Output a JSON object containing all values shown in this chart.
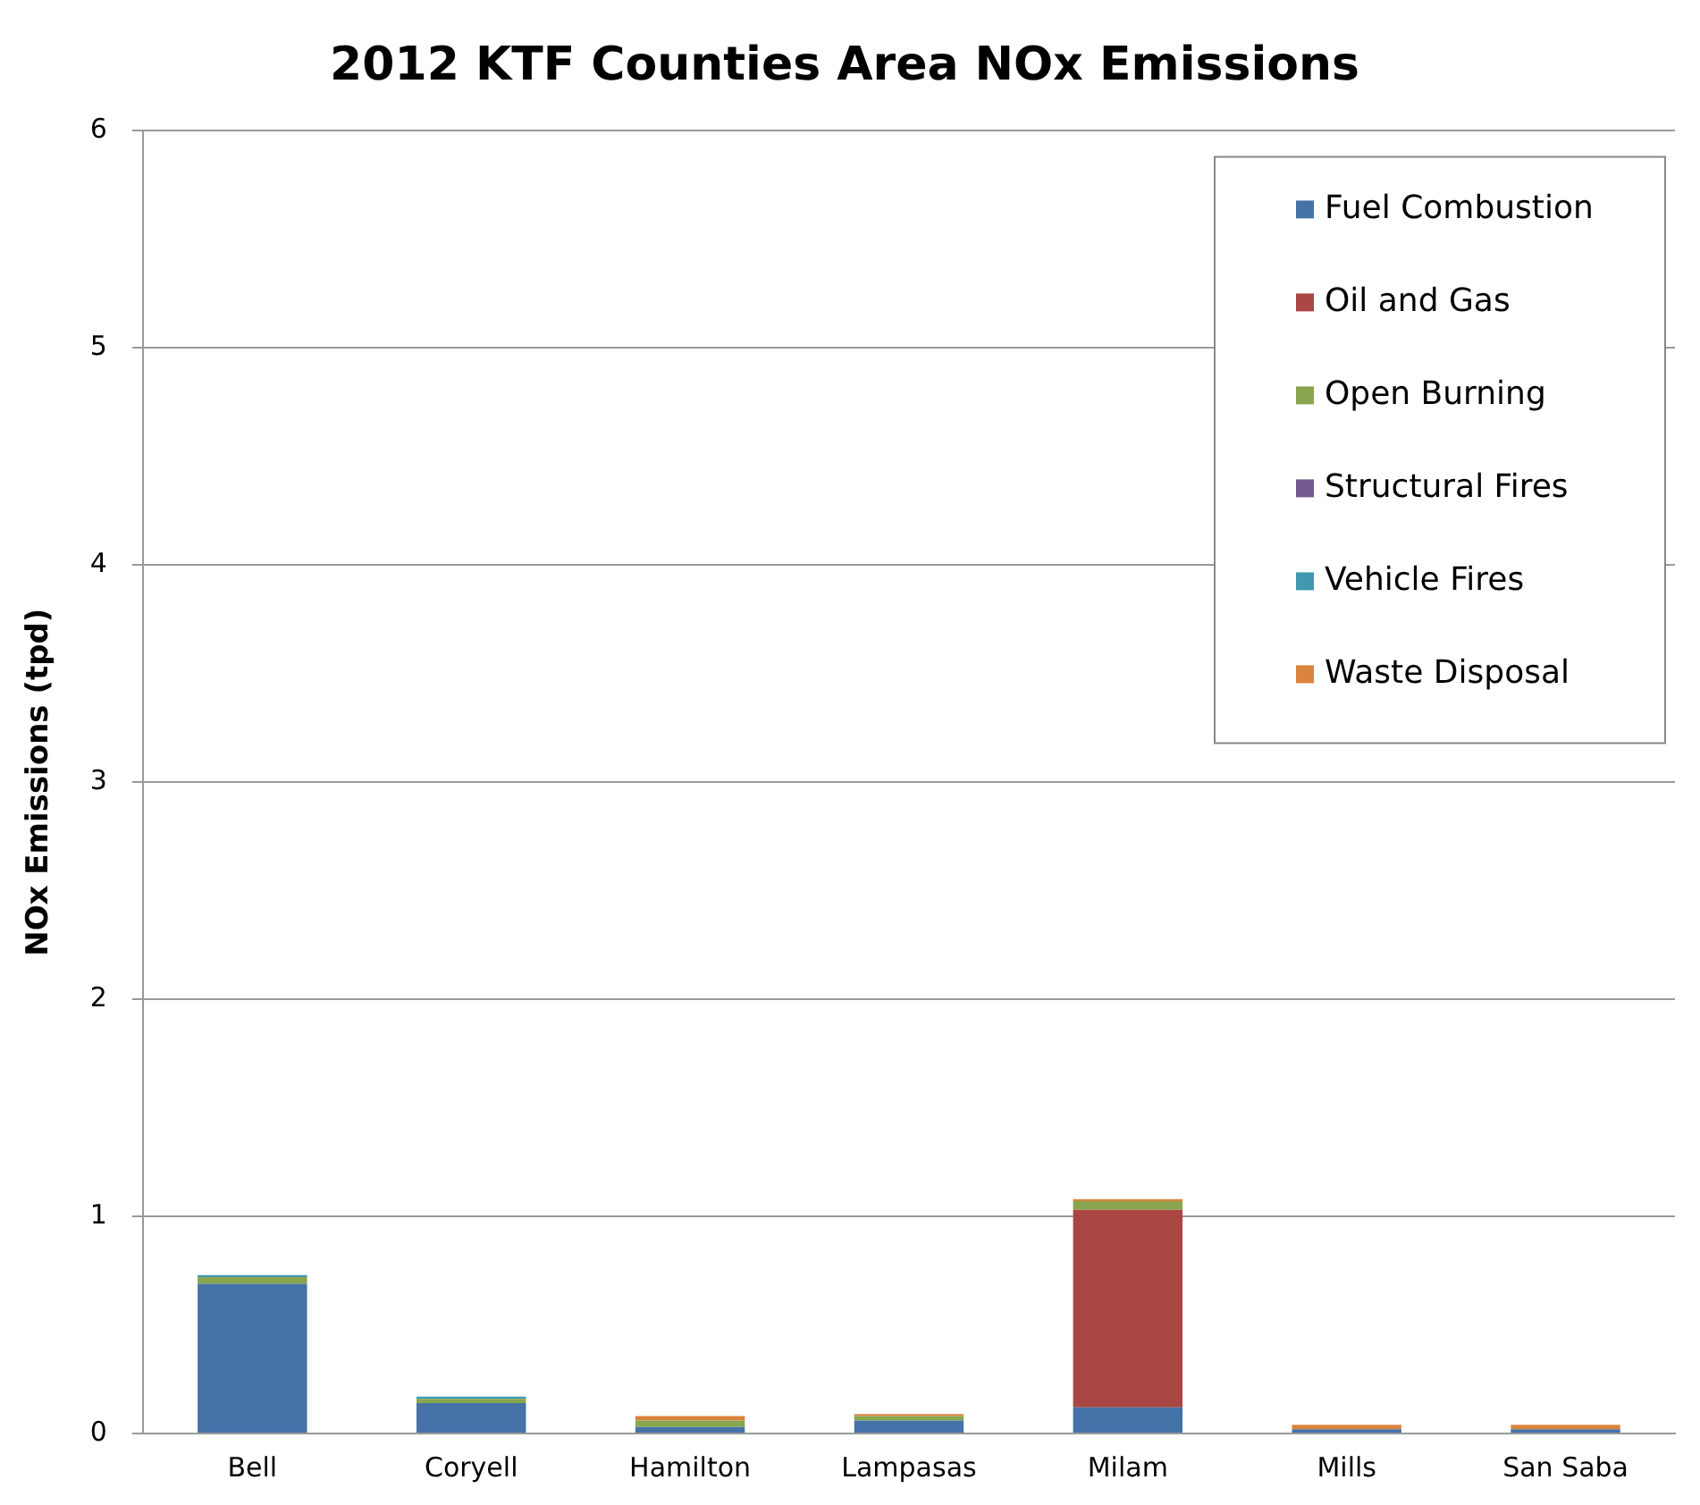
{
  "chart_data": {
    "type": "bar",
    "title": "2012 KTF Counties Area NOx Emissions",
    "ylabel": "NOx Emissions (tpd)",
    "categories": [
      "Bell",
      "Coryell",
      "Hamilton",
      "Lampasas",
      "Milam",
      "Mills",
      "San Saba"
    ],
    "stacked": true,
    "series": [
      {
        "name": "Fuel Combustion",
        "color": "#4572a7",
        "values": [
          0.69,
          0.14,
          0.03,
          0.06,
          0.12,
          0.02,
          0.02
        ]
      },
      {
        "name": "Oil and Gas",
        "color": "#aa4643",
        "values": [
          0,
          0,
          0,
          0,
          0.91,
          0,
          0
        ]
      },
      {
        "name": "Open Burning",
        "color": "#89a54e",
        "values": [
          0.03,
          0.02,
          0.03,
          0.02,
          0.04,
          0,
          0
        ]
      },
      {
        "name": "Structural Fires",
        "color": "#71588f",
        "values": [
          0,
          0,
          0,
          0,
          0,
          0,
          0
        ]
      },
      {
        "name": "Vehicle Fires",
        "color": "#4198af",
        "values": [
          0.01,
          0.01,
          0,
          0,
          0,
          0,
          0
        ]
      },
      {
        "name": "Waste Disposal",
        "color": "#db843d",
        "values": [
          0,
          0,
          0.02,
          0.01,
          0.01,
          0.02,
          0.02
        ]
      }
    ],
    "ylim": [
      0,
      6
    ],
    "yticks": [
      0,
      1,
      2,
      3,
      4,
      5,
      6
    ],
    "grid": "y",
    "legend": "top right"
  }
}
